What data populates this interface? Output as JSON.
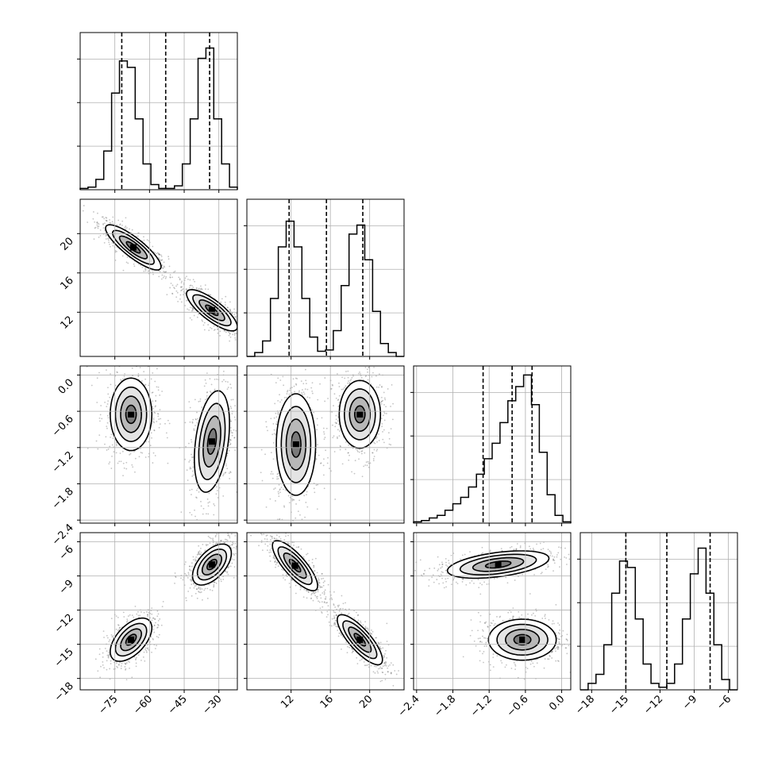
{
  "chart_data": {
    "type": "corner",
    "params": [
      {
        "ticks": [
          -75,
          -60,
          -45,
          -30
        ],
        "range": [
          -90,
          -22
        ],
        "modes": [
          {
            "mean": -68,
            "sd": 4.2,
            "w": 0.5
          },
          {
            "mean": -32,
            "sd": 4.2,
            "w": 0.5
          }
        ],
        "quantiles": [
          -72,
          -53,
          -34
        ]
      },
      {
        "ticks": [
          12,
          16,
          20
        ],
        "range": [
          7.5,
          23.5
        ],
        "modes": [
          {
            "mean": 12.6,
            "sd": 1.05,
            "w": 0.5
          },
          {
            "mean": 19.0,
            "sd": 1.05,
            "w": 0.5
          }
        ],
        "quantiles": [
          11.8,
          15.6,
          19.3
        ]
      },
      {
        "ticks": [
          -2.4,
          -1.8,
          -1.2,
          -0.6,
          0.0
        ],
        "range": [
          -2.45,
          0.15
        ],
        "modes": [
          {
            "mean": -0.65,
            "sd": 0.28,
            "w": 0.6
          },
          {
            "mean": -1.15,
            "sd": 0.42,
            "w": 0.4
          }
        ],
        "quantiles": [
          -1.3,
          -0.82,
          -0.49
        ]
      },
      {
        "ticks": [
          -18,
          -15,
          -12,
          -9,
          -6
        ],
        "range": [
          -19,
          -5.2
        ],
        "modes": [
          {
            "mean": -14.5,
            "sd": 0.9,
            "w": 0.5
          },
          {
            "mean": -8.0,
            "sd": 0.9,
            "w": 0.5
          }
        ],
        "quantiles": [
          -15.0,
          -11.4,
          -7.6
        ]
      }
    ],
    "histograms": [
      {
        "param": 0,
        "bins": [
          -90,
          -86.6,
          -83.2,
          -79.8,
          -76.4,
          -73,
          -69.6,
          -66.2,
          -62.8,
          -59.4,
          -56,
          -52.6,
          -49.2,
          -45.8,
          -42.4,
          -39,
          -35.6,
          -32.2,
          -28.8,
          -25.4,
          -22
        ],
        "counts": [
          0.01,
          0.02,
          0.08,
          0.3,
          0.75,
          1.0,
          0.95,
          0.55,
          0.2,
          0.04,
          0.01,
          0.01,
          0.03,
          0.2,
          0.55,
          1.02,
          1.1,
          0.55,
          0.2,
          0.02
        ]
      },
      {
        "param": 1,
        "bins": [
          7.5,
          8.3,
          9.1,
          9.9,
          10.7,
          11.5,
          12.3,
          13.1,
          13.9,
          14.7,
          15.5,
          16.3,
          17.1,
          17.9,
          18.7,
          19.5,
          20.3,
          21.1,
          21.9,
          22.7,
          23.5
        ],
        "counts": [
          0.0,
          0.03,
          0.12,
          0.45,
          0.85,
          1.05,
          0.85,
          0.45,
          0.15,
          0.04,
          0.05,
          0.2,
          0.55,
          0.95,
          1.02,
          0.75,
          0.35,
          0.1,
          0.03,
          0.0
        ]
      },
      {
        "param": 2,
        "bins": [
          -2.45,
          -2.32,
          -2.19,
          -2.06,
          -1.93,
          -1.8,
          -1.67,
          -1.54,
          -1.41,
          -1.28,
          -1.15,
          -1.02,
          -0.89,
          -0.76,
          -0.63,
          -0.5,
          -0.37,
          -0.24,
          -0.11,
          0.02,
          0.15
        ],
        "counts": [
          0.01,
          0.02,
          0.04,
          0.06,
          0.1,
          0.15,
          0.2,
          0.28,
          0.38,
          0.5,
          0.62,
          0.78,
          0.95,
          1.06,
          1.15,
          0.92,
          0.55,
          0.22,
          0.06,
          0.01
        ]
      },
      {
        "param": 3,
        "bins": [
          -19,
          -18.31,
          -17.62,
          -16.93,
          -16.24,
          -15.55,
          -14.86,
          -14.17,
          -13.48,
          -12.79,
          -12.1,
          -11.41,
          -10.72,
          -10.03,
          -9.34,
          -8.65,
          -7.96,
          -7.27,
          -6.58,
          -5.89,
          -5.2
        ],
        "counts": [
          0.0,
          0.05,
          0.12,
          0.35,
          0.75,
          1.0,
          0.95,
          0.55,
          0.2,
          0.05,
          0.02,
          0.05,
          0.2,
          0.55,
          0.9,
          1.1,
          0.75,
          0.35,
          0.08,
          0.0
        ]
      }
    ],
    "pairs": [
      {
        "x": 0,
        "y": 1,
        "blobs": [
          {
            "cx": -67,
            "cy": 18.6,
            "sx": 6,
            "sy": 1.15,
            "rho": -0.85
          },
          {
            "cx": -33,
            "cy": 12.2,
            "sx": 5.5,
            "sy": 1.05,
            "rho": -0.8
          }
        ]
      },
      {
        "x": 0,
        "y": 2,
        "blobs": [
          {
            "cx": -68,
            "cy": -0.65,
            "sx": 4.5,
            "sy": 0.3,
            "rho": 0.0
          },
          {
            "cx": -33,
            "cy": -1.1,
            "sx": 3.8,
            "sy": 0.42,
            "rho": 0.35
          }
        ]
      },
      {
        "x": 1,
        "y": 2,
        "blobs": [
          {
            "cx": 12.5,
            "cy": -1.15,
            "sx": 1.0,
            "sy": 0.42,
            "rho": 0.0
          },
          {
            "cx": 19.0,
            "cy": -0.65,
            "sx": 1.05,
            "sy": 0.28,
            "rho": 0.0
          }
        ]
      },
      {
        "x": 0,
        "y": 3,
        "blobs": [
          {
            "cx": -68,
            "cy": -14.6,
            "sx": 4.5,
            "sy": 0.95,
            "rho": 0.55
          },
          {
            "cx": -33,
            "cy": -8.0,
            "sx": 4.2,
            "sy": 0.9,
            "rho": 0.55
          }
        ]
      },
      {
        "x": 1,
        "y": 3,
        "blobs": [
          {
            "cx": 12.4,
            "cy": -8.1,
            "sx": 1.15,
            "sy": 1.1,
            "rho": -0.8
          },
          {
            "cx": 19.0,
            "cy": -14.6,
            "sx": 1.15,
            "sy": 1.1,
            "rho": -0.8
          }
        ]
      },
      {
        "x": 2,
        "y": 3,
        "blobs": [
          {
            "cx": -1.05,
            "cy": -8.0,
            "sx": 0.42,
            "sy": 0.6,
            "rho": 0.45
          },
          {
            "cx": -0.65,
            "cy": -14.6,
            "sx": 0.28,
            "sy": 0.9,
            "rho": 0.0
          }
        ]
      }
    ],
    "contour_levels": [
      0.5,
      1.0,
      1.5,
      2.0
    ],
    "grid": true
  }
}
